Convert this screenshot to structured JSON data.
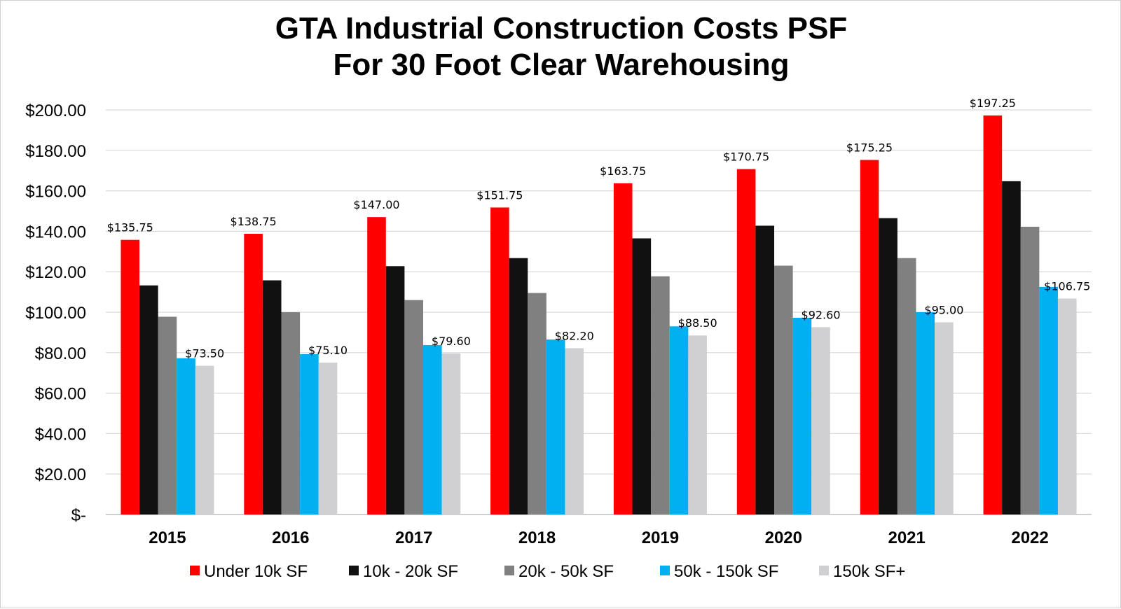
{
  "chart_data": {
    "type": "bar",
    "title": "GTA Industrial Construction Costs PSF",
    "subtitle": "For 30 Foot Clear Warehousing",
    "xlabel": "",
    "ylabel": "",
    "categories": [
      "2015",
      "2016",
      "2017",
      "2018",
      "2019",
      "2020",
      "2021",
      "2022"
    ],
    "ylim": [
      0,
      200
    ],
    "yticks": [
      0,
      20,
      40,
      60,
      80,
      100,
      120,
      140,
      160,
      180,
      200
    ],
    "ytick_labels": [
      "$-",
      "$20.00",
      "$40.00",
      "$60.00",
      "$80.00",
      "$100.00",
      "$120.00",
      "$140.00",
      "$160.00",
      "$180.00",
      "$200.00"
    ],
    "grid": true,
    "legend_position": "bottom",
    "series": [
      {
        "name": "Under 10k SF",
        "color": "#ff0000",
        "values": [
          135.75,
          138.75,
          147.0,
          151.75,
          163.75,
          170.75,
          175.25,
          197.25
        ],
        "labels": [
          "$135.75",
          "$138.75",
          "$147.00",
          "$151.75",
          "$163.75",
          "$170.75",
          "$175.25",
          "$197.25"
        ]
      },
      {
        "name": "10k - 20k SF",
        "color": "#111111",
        "values": [
          113.25,
          115.75,
          122.75,
          126.75,
          136.5,
          142.75,
          146.5,
          164.75
        ],
        "labels": []
      },
      {
        "name": "20k - 50k SF",
        "color": "#808080",
        "values": [
          97.75,
          100.0,
          106.0,
          109.5,
          117.75,
          123.0,
          126.75,
          142.25
        ],
        "labels": []
      },
      {
        "name": "50k - 150k SF",
        "color": "#00b0f0",
        "values": [
          77.25,
          79.25,
          83.75,
          86.5,
          93.0,
          97.25,
          100.0,
          112.5
        ],
        "labels": []
      },
      {
        "name": "150k SF+",
        "color": "#d0cfd1",
        "values": [
          73.5,
          75.1,
          79.6,
          82.2,
          88.5,
          92.6,
          95.0,
          106.75
        ],
        "labels": [
          "$73.50",
          "$75.10",
          "$79.60",
          "$82.20",
          "$88.50",
          "$92.60",
          "$95.00",
          "$106.75"
        ]
      }
    ]
  }
}
